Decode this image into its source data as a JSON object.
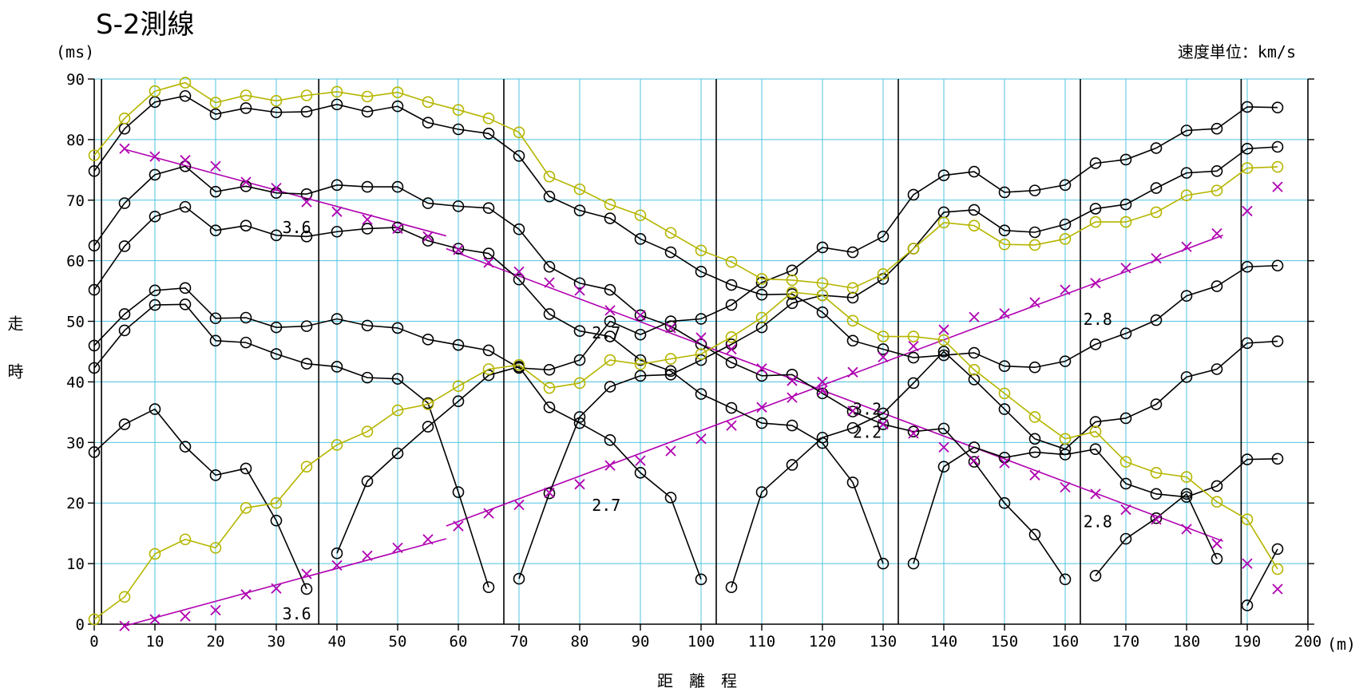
{
  "chart_data": {
    "type": "line",
    "title": "S-2測線",
    "xlabel": "距　離　程",
    "ylabel": "走　　時",
    "x_unit": "(m)",
    "y_unit": "(ms)",
    "velocity_unit_note": "速度単位：km/s",
    "xlim": [
      0,
      200
    ],
    "ylim": [
      0,
      90
    ],
    "x_ticks": [
      "0",
      "10",
      "20",
      "30",
      "40",
      "50",
      "60",
      "70",
      "80",
      "90",
      "100",
      "110",
      "120",
      "130",
      "140",
      "150",
      "160",
      "170",
      "180",
      "190",
      "200"
    ],
    "y_ticks": [
      "0",
      "10",
      "20",
      "30",
      "40",
      "50",
      "60",
      "70",
      "80",
      "90"
    ],
    "grid": true,
    "shot_points": [
      1.2,
      37,
      67.5,
      102.5,
      132.5,
      162.5,
      189
    ],
    "colors": {
      "curve": "#000000",
      "fitted": "#b5b500",
      "inferred": "#b000b0",
      "grid": "#4fc3df"
    },
    "series": [
      {
        "style": "black",
        "x": [
          0,
          5,
          10,
          15,
          20,
          25,
          30,
          35,
          40,
          45,
          50,
          55,
          60,
          65,
          70,
          75,
          80,
          85,
          90,
          95,
          100,
          105,
          110,
          115,
          120,
          125,
          130,
          135,
          140,
          145,
          150,
          155,
          160,
          165,
          170,
          175,
          180,
          185,
          190,
          195
        ],
        "y": [
          74.8,
          81.8,
          86.2,
          87.2,
          84.2,
          85.2,
          84.5,
          84.6,
          85.8,
          84.6,
          85.5,
          82.8,
          81.7,
          81,
          77.3,
          70.6,
          68.3,
          67,
          63.6,
          61.4,
          58.2,
          56,
          54.4,
          54.5,
          51.5,
          46.8,
          45.4,
          44,
          44.4,
          44.8,
          42.6,
          42.4,
          43.4,
          46.2,
          48,
          50.2,
          54.2,
          55.8,
          59,
          59.2
        ]
      },
      {
        "style": "black",
        "x": [
          0,
          5,
          10,
          15,
          20,
          25,
          30,
          35,
          40,
          45,
          50,
          55,
          60,
          65,
          70,
          75,
          80,
          85,
          90,
          95,
          100,
          105,
          110,
          115,
          120,
          125,
          130,
          135,
          140,
          145,
          150,
          155,
          160,
          165,
          170,
          175,
          180,
          185,
          190,
          195
        ],
        "y": [
          62.5,
          69.5,
          74.2,
          75.6,
          71.4,
          72.3,
          71.2,
          71,
          72.5,
          72.2,
          72.2,
          69.5,
          69,
          68.7,
          65.2,
          59,
          56.3,
          55.2,
          51,
          49.2,
          46.2,
          43.2,
          41,
          41.2,
          38.1,
          35.1,
          33,
          31.8,
          32.3,
          26.8,
          20,
          14.8,
          7.4,
          null,
          null,
          null,
          null,
          null,
          null,
          null
        ]
      },
      {
        "style": "black",
        "x": [
          0,
          5,
          10,
          15,
          20,
          25,
          30,
          35,
          40,
          45,
          50,
          55,
          60,
          65,
          70,
          75,
          80,
          85,
          90,
          95,
          100,
          105,
          110,
          115,
          120,
          125,
          130,
          135,
          140,
          145,
          150,
          155,
          160,
          165,
          170,
          175,
          180,
          185,
          190,
          195
        ],
        "y": [
          55.2,
          62.4,
          67.3,
          68.9,
          65,
          65.8,
          64.2,
          64,
          64.8,
          65.3,
          65.5,
          63.3,
          62,
          61.2,
          56.9,
          51.2,
          48.4,
          47.5,
          43.6,
          41.8,
          38,
          35.7,
          33.2,
          32.8,
          29.9,
          23.4,
          10,
          null,
          null,
          null,
          null,
          null,
          null,
          null,
          null,
          null,
          null,
          null,
          null,
          null
        ]
      },
      {
        "style": "black",
        "x": [
          0,
          5,
          10,
          15,
          20,
          25,
          30,
          35,
          40,
          45,
          50,
          55,
          60,
          65,
          70,
          75,
          80,
          85,
          90,
          95,
          100,
          105,
          110,
          115,
          120,
          125,
          130,
          135,
          140,
          145,
          150,
          155,
          160,
          165,
          170,
          175,
          180,
          185,
          190,
          195
        ],
        "y": [
          46,
          51.2,
          55.1,
          55.5,
          50.5,
          50.6,
          49,
          49.2,
          50.4,
          49.3,
          48.9,
          47,
          46.1,
          45.2,
          42.3,
          42,
          43.6,
          50,
          47.8,
          50,
          50.4,
          52.7,
          56.4,
          58.4,
          62.2,
          61.4,
          64,
          70.9,
          74.1,
          74.7,
          71.3,
          71.6,
          72.5,
          76.1,
          76.7,
          78.6,
          81.5,
          81.8,
          85.4,
          85.3
        ]
      },
      {
        "style": "black",
        "x": [
          0,
          5,
          10,
          15,
          20,
          25,
          30,
          35,
          40,
          45,
          50,
          55,
          60,
          65,
          70,
          75,
          80,
          85,
          90,
          95,
          100,
          105,
          110,
          115,
          120,
          125,
          130,
          135,
          140,
          145,
          150,
          155,
          160,
          165,
          170,
          175,
          180,
          185,
          190,
          195
        ],
        "y": [
          42.3,
          48.5,
          52.7,
          52.8,
          46.8,
          46.5,
          44.6,
          43,
          42.5,
          40.7,
          40.5,
          36.5,
          21.8,
          6.1,
          null,
          null,
          null,
          null,
          null,
          null,
          null,
          null,
          null,
          null,
          null,
          null,
          null,
          null,
          null,
          null,
          null,
          null,
          null,
          null,
          null,
          null,
          null,
          null,
          null,
          null
        ]
      },
      {
        "style": "black",
        "x": [
          0,
          5,
          10,
          15,
          20,
          25,
          30,
          35,
          40,
          45,
          50,
          55,
          60,
          65,
          70,
          75,
          80,
          85,
          90,
          95,
          100,
          105,
          110,
          115,
          120,
          125,
          130,
          135,
          140,
          145,
          150,
          155,
          160,
          165,
          170,
          175,
          180,
          185,
          190,
          195
        ],
        "y": [
          28.4,
          33,
          35.5,
          29.3,
          24.6,
          25.7,
          17.1,
          5.8,
          null,
          null,
          null,
          null,
          null,
          null,
          null,
          null,
          null,
          null,
          null,
          null,
          null,
          null,
          null,
          null,
          null,
          null,
          null,
          null,
          null,
          null,
          null,
          null,
          null,
          null,
          null,
          null,
          null,
          null,
          null,
          null
        ]
      },
      {
        "style": "black",
        "x": [
          40,
          45,
          50,
          55,
          60,
          65,
          70,
          75,
          80,
          85,
          90,
          95,
          100,
          105,
          110,
          115,
          120,
          125,
          130,
          135,
          140,
          145,
          150,
          155,
          160,
          165,
          170,
          175,
          180,
          185,
          190,
          195
        ],
        "y": [
          11.7,
          23.6,
          28.2,
          32.6,
          36.8,
          41.1,
          42.5,
          35.8,
          33.2,
          30.4,
          25,
          20.9,
          7.4,
          null,
          null,
          null,
          null,
          null,
          null,
          null,
          null,
          null,
          null,
          null,
          null,
          null,
          null,
          null,
          null,
          null,
          null,
          null
        ]
      },
      {
        "style": "black",
        "x": [
          70,
          75,
          80,
          85,
          90,
          95,
          100,
          105,
          110,
          115,
          120,
          125,
          130,
          135,
          140,
          145,
          150,
          155,
          160,
          165,
          170,
          175,
          180,
          185,
          190,
          195
        ],
        "y": [
          7.5,
          21.6,
          34.2,
          39.2,
          41,
          41.2,
          43.6,
          46.2,
          49,
          53,
          54.3,
          53.9,
          57,
          62,
          68,
          68.4,
          65,
          64.7,
          66,
          68.6,
          69.3,
          72,
          74.5,
          74.8,
          78.5,
          78.8
        ]
      },
      {
        "style": "black",
        "x": [
          105,
          110,
          115,
          120,
          125,
          130,
          135,
          140,
          145,
          150,
          155,
          160,
          165,
          170,
          175,
          180,
          185,
          190,
          195
        ],
        "y": [
          6.1,
          21.8,
          26.3,
          30.8,
          32.4,
          34.8,
          39.8,
          45,
          40.4,
          35.5,
          30.6,
          28.9,
          33.4,
          34,
          36.3,
          40.8,
          42.1,
          46.4,
          46.7
        ]
      },
      {
        "style": "black",
        "x": [
          135,
          140,
          145,
          150,
          155,
          160,
          165,
          170,
          175,
          180,
          185,
          190,
          195
        ],
        "y": [
          10,
          26,
          29.2,
          27.5,
          28.4,
          28,
          28.9,
          23.2,
          21.5,
          21,
          22.8,
          27.2,
          27.3
        ]
      },
      {
        "style": "black",
        "x": [
          165,
          170,
          175,
          180,
          185,
          190,
          195
        ],
        "y": [
          8,
          14.1,
          17.5,
          21.5,
          10.8,
          null,
          null
        ]
      },
      {
        "style": "black",
        "x": [
          190,
          195
        ],
        "y": [
          3.1,
          12.4
        ]
      },
      {
        "style": "olive",
        "x": [
          0,
          5,
          10,
          15,
          20,
          25,
          30,
          35,
          40,
          45,
          50,
          55,
          60,
          65,
          70,
          75,
          80,
          85,
          90,
          95,
          100,
          105,
          110,
          115,
          120,
          125,
          130,
          135,
          140,
          145,
          150,
          155,
          160,
          165,
          170,
          175,
          180,
          185,
          190,
          195
        ],
        "y": [
          77.4,
          83.5,
          88,
          89.4,
          86.1,
          87.3,
          86.4,
          87.3,
          87.9,
          87.1,
          87.8,
          86.2,
          84.9,
          83.5,
          81.2,
          73.9,
          71.8,
          69.3,
          67.5,
          64.6,
          61.7,
          59.8,
          57,
          56.8,
          56.3,
          55.5,
          57.8,
          62,
          66.3,
          65.8,
          62.7,
          62.6,
          63.6,
          66.4,
          66.4,
          68,
          70.8,
          71.6,
          75.3,
          75.5
        ]
      },
      {
        "style": "olive",
        "x": [
          0,
          5,
          10,
          15,
          20,
          25,
          30,
          35,
          40,
          45,
          50,
          55,
          60,
          65,
          70,
          75,
          80,
          85,
          90,
          95,
          100,
          105,
          110,
          115,
          120,
          125,
          130,
          135,
          140,
          145,
          150,
          155,
          160,
          165,
          170,
          175,
          180,
          185,
          190,
          195
        ],
        "y": [
          0.8,
          4.5,
          11.6,
          14,
          12.6,
          19.2,
          20,
          26,
          29.6,
          31.8,
          35.3,
          36.3,
          39.3,
          42.1,
          42.8,
          39,
          39.8,
          43.6,
          42.9,
          43.8,
          44.6,
          47.4,
          50.6,
          54.8,
          54.3,
          50.1,
          47.5,
          47.5,
          46.9,
          42,
          38.1,
          34.2,
          30.6,
          31.8,
          26.8,
          25,
          24.3,
          20.2,
          17.3,
          9.1
        ]
      },
      {
        "style": "inferred",
        "x": [
          5,
          10,
          15,
          20,
          25,
          30,
          35,
          40,
          45,
          50,
          55,
          60,
          65,
          70,
          75,
          80,
          85,
          90,
          95,
          100,
          105,
          110,
          115,
          120,
          125,
          130,
          135,
          140,
          145,
          150,
          155,
          160,
          165,
          170,
          175,
          180,
          185,
          190,
          195
        ],
        "y": [
          78.5,
          77.2,
          76.6,
          75.6,
          73,
          72,
          69.7,
          68.1,
          66.8,
          65.3,
          64,
          61.8,
          59.7,
          58.2,
          56.4,
          55.1,
          51.8,
          51,
          48.9,
          47.3,
          45.4,
          42.2,
          40.2,
          38.6,
          35.2,
          33,
          31.5,
          29.2,
          27,
          26.6,
          24.6,
          22.6,
          21.5,
          18.9,
          17.3,
          15.7,
          13.3,
          10,
          5.8
        ]
      },
      {
        "style": "inferred",
        "x": [
          5,
          10,
          15,
          20,
          25,
          30,
          35,
          40,
          45,
          50,
          55,
          60,
          65,
          70,
          75,
          80,
          85,
          90,
          95,
          100,
          105,
          110,
          115,
          120,
          125,
          130,
          135,
          140,
          145,
          150,
          155,
          160,
          165,
          170,
          175,
          180,
          185,
          190,
          195
        ],
        "y": [
          -0.3,
          0.8,
          1.3,
          2.3,
          4.9,
          5.9,
          8.3,
          9.7,
          11.3,
          12.6,
          14,
          16.2,
          18.3,
          19.7,
          21.7,
          23.1,
          26.2,
          27,
          28.6,
          30.6,
          32.8,
          35.8,
          37.4,
          40,
          41.6,
          44.1,
          45.9,
          48.6,
          50.7,
          51.3,
          53.1,
          55.2,
          56.3,
          58.8,
          60.4,
          62.3,
          64.5,
          68.2,
          72.2
        ]
      }
    ],
    "fit_lines": [
      {
        "x": [
          5,
          58
        ],
        "y": [
          78.4,
          64.1
        ]
      },
      {
        "x": [
          5,
          58
        ],
        "y": [
          -0.3,
          14.1
        ]
      },
      {
        "x": [
          58,
          186
        ],
        "y": [
          62,
          13.7
        ]
      },
      {
        "x": [
          58,
          186
        ],
        "y": [
          16.2,
          64.2
        ]
      }
    ],
    "annotations": [
      "3.6",
      "3.6",
      "2.7",
      "2.7",
      "3.2",
      "2.2",
      "2.8",
      "2.8"
    ]
  }
}
